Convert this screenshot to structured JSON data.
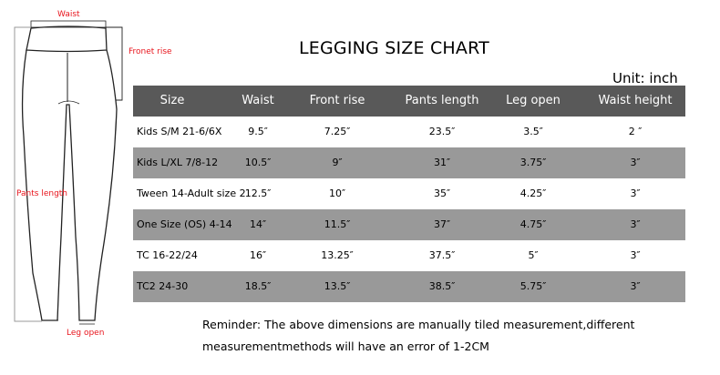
{
  "title": "LEGGING SIZE CHART",
  "unit": "Unit: inch",
  "diagram_labels": {
    "waist": "Waist",
    "front_rise": "Fronet rise",
    "pants_length": "Pants length",
    "leg_open": "Leg open"
  },
  "colors": {
    "header_bg": "#595959",
    "stripe_bg": "#999999",
    "label_red": "#e8141c"
  },
  "table": {
    "headers": [
      "Size",
      "Waist",
      "Front rise",
      "Pants length",
      "Leg open",
      "Waist height"
    ],
    "rows": [
      [
        "Kids S/M 21-6/6X",
        "9.5″",
        "7.25″",
        "23.5″",
        "3.5″",
        "2 ″"
      ],
      [
        "Kids L/XL 7/8-12",
        "10.5″",
        "9″",
        "31″",
        "3.75″",
        "3″"
      ],
      [
        "Tween 14-Adult size 2",
        "12.5″",
        "10″",
        "35″",
        "4.25″",
        "3″"
      ],
      [
        "One Size  (OS)   4-14",
        "14″",
        "11.5″",
        "37″",
        "4.75″",
        "3″"
      ],
      [
        "TC 16-22/24",
        "16″",
        "13.25″",
        "37.5″",
        "5″",
        "3″"
      ],
      [
        "TC2 24-30",
        "18.5″",
        "13.5″",
        "38.5″",
        "5.75″",
        "3″"
      ]
    ]
  },
  "reminder": "Reminder: The above dimensions are manually tiled measurement,different measurementmethods will have an error of 1-2CM"
}
